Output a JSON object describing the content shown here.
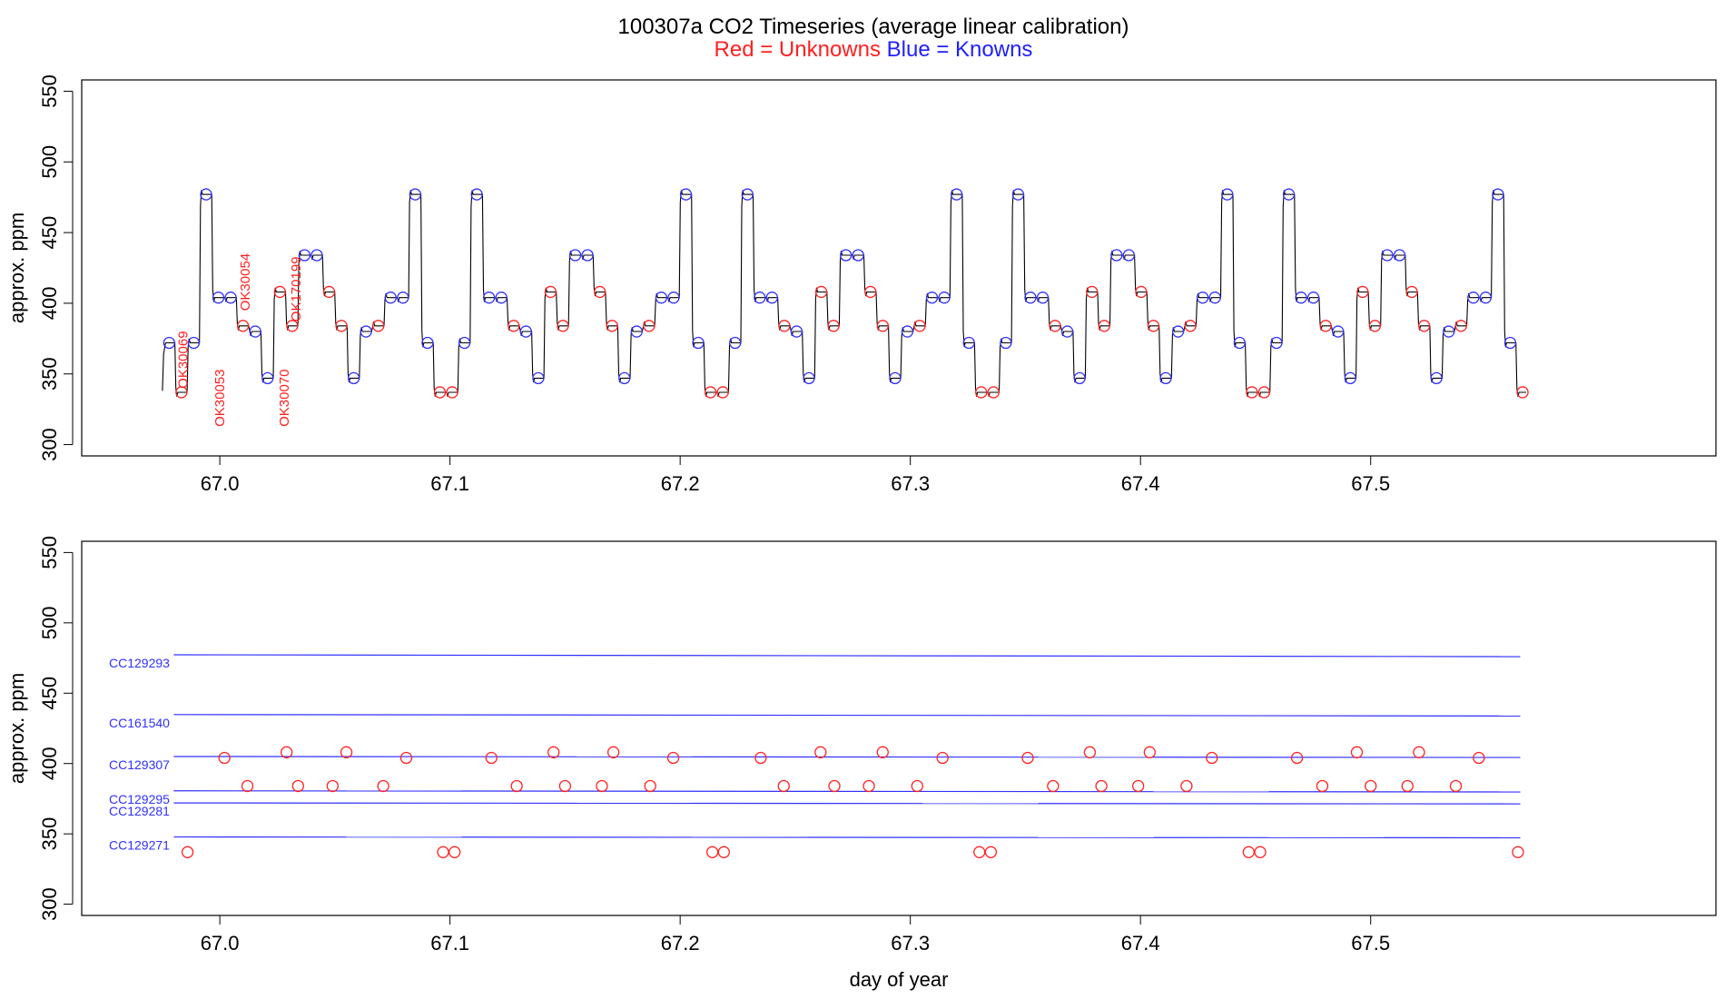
{
  "title": "100307a   CO2 Timeseries (average linear calibration)",
  "subtitle": {
    "red_text": "Red = Unknowns",
    "blue_text": "Blue = Knowns"
  },
  "colors": {
    "unknown": "#ff2020",
    "known": "#3030ff",
    "trace": "#000000",
    "axis": "#000000"
  },
  "chart_data": [
    {
      "type": "line",
      "title": "",
      "xlabel": "",
      "ylabel": "approx. ppm",
      "xlim": [
        66.94,
        67.65
      ],
      "ylim": [
        292,
        558
      ],
      "xticks": [
        67.0,
        67.1,
        67.2,
        67.3,
        67.4,
        67.5
      ],
      "xtick_labels": [
        "67.0",
        "67.1",
        "67.2",
        "67.3",
        "67.4",
        "67.5"
      ],
      "yticks": [
        300,
        350,
        400,
        450,
        500,
        550
      ],
      "ytick_labels": [
        "300",
        "350",
        "400",
        "450",
        "500",
        "550"
      ],
      "x_start": 66.978,
      "x_end": 67.566,
      "value_sequence": [
        372,
        337,
        372,
        477,
        404,
        404,
        384,
        380,
        347,
        408,
        384,
        434,
        434,
        408,
        384,
        347,
        380,
        384,
        404,
        404,
        477,
        372,
        337,
        337,
        372,
        477,
        404,
        404,
        384,
        380,
        347,
        408,
        384,
        434,
        434,
        408,
        384,
        347,
        380,
        384,
        404,
        404,
        477,
        372,
        337,
        337,
        372,
        477,
        404,
        404,
        384,
        380,
        347,
        408,
        384,
        434,
        434,
        408,
        384,
        347,
        380,
        384,
        404,
        404,
        477,
        372,
        337,
        337,
        372,
        477,
        404,
        404,
        384,
        380,
        347,
        408,
        384,
        434,
        434,
        408,
        384,
        347,
        380,
        384,
        404,
        404,
        477,
        372,
        337,
        337,
        372,
        477,
        404,
        404,
        384,
        380,
        347,
        408,
        384,
        434,
        434,
        408,
        384,
        347,
        380,
        384,
        404,
        404,
        477,
        372,
        337
      ],
      "known_values": [
        477,
        434,
        404,
        380,
        372,
        347
      ],
      "annotations": [
        {
          "text": "OK30069",
          "x": 66.986,
          "y": 360
        },
        {
          "text": "OK30053",
          "x": 67.002,
          "y": 333
        },
        {
          "text": "OK30054",
          "x": 67.013,
          "y": 415
        },
        {
          "text": "OK30070",
          "x": 67.03,
          "y": 333
        },
        {
          "text": "OK170199",
          "x": 67.035,
          "y": 410
        }
      ]
    },
    {
      "type": "scatter",
      "title": "",
      "xlabel": "day of year",
      "ylabel": "approx. ppm",
      "xlim": [
        66.94,
        67.65
      ],
      "ylim": [
        292,
        558
      ],
      "xticks": [
        67.0,
        67.1,
        67.2,
        67.3,
        67.4,
        67.5
      ],
      "xtick_labels": [
        "67.0",
        "67.1",
        "67.2",
        "67.3",
        "67.4",
        "67.5"
      ],
      "yticks": [
        300,
        350,
        400,
        450,
        500,
        550
      ],
      "ytick_labels": [
        "300",
        "350",
        "400",
        "450",
        "500",
        "550"
      ],
      "standards": [
        {
          "name": "CC129293",
          "y_start": 477.3,
          "y_end": 476.0
        },
        {
          "name": "CC161540",
          "y_start": 434.8,
          "y_end": 433.8
        },
        {
          "name": "CC129307",
          "y_start": 405.0,
          "y_end": 404.3
        },
        {
          "name": "CC129295",
          "y_start": 380.6,
          "y_end": 379.8
        },
        {
          "name": "CC129281",
          "y_start": 372.0,
          "y_end": 371.3
        },
        {
          "name": "CC129271",
          "y_start": 347.8,
          "y_end": 347.2
        }
      ],
      "standards_x": [
        66.98,
        67.565
      ],
      "unknowns": [
        {
          "x": 66.986,
          "y": 337
        },
        {
          "x": 67.002,
          "y": 404
        },
        {
          "x": 67.012,
          "y": 384
        },
        {
          "x": 67.029,
          "y": 408
        },
        {
          "x": 67.034,
          "y": 384
        },
        {
          "x": 67.049,
          "y": 384
        },
        {
          "x": 67.055,
          "y": 408
        },
        {
          "x": 67.071,
          "y": 384
        },
        {
          "x": 67.081,
          "y": 404
        },
        {
          "x": 67.097,
          "y": 337
        },
        {
          "x": 67.102,
          "y": 337
        },
        {
          "x": 67.118,
          "y": 404
        },
        {
          "x": 67.129,
          "y": 384
        },
        {
          "x": 67.145,
          "y": 408
        },
        {
          "x": 67.15,
          "y": 384
        },
        {
          "x": 67.166,
          "y": 384
        },
        {
          "x": 67.171,
          "y": 408
        },
        {
          "x": 67.187,
          "y": 384
        },
        {
          "x": 67.197,
          "y": 404
        },
        {
          "x": 67.214,
          "y": 337
        },
        {
          "x": 67.219,
          "y": 337
        },
        {
          "x": 67.235,
          "y": 404
        },
        {
          "x": 67.245,
          "y": 384
        },
        {
          "x": 67.261,
          "y": 408
        },
        {
          "x": 67.267,
          "y": 384
        },
        {
          "x": 67.282,
          "y": 384
        },
        {
          "x": 67.288,
          "y": 408
        },
        {
          "x": 67.303,
          "y": 384
        },
        {
          "x": 67.314,
          "y": 404
        },
        {
          "x": 67.33,
          "y": 337
        },
        {
          "x": 67.335,
          "y": 337
        },
        {
          "x": 67.351,
          "y": 404
        },
        {
          "x": 67.362,
          "y": 384
        },
        {
          "x": 67.378,
          "y": 408
        },
        {
          "x": 67.383,
          "y": 384
        },
        {
          "x": 67.399,
          "y": 384
        },
        {
          "x": 67.404,
          "y": 408
        },
        {
          "x": 67.42,
          "y": 384
        },
        {
          "x": 67.431,
          "y": 404
        },
        {
          "x": 67.447,
          "y": 337
        },
        {
          "x": 67.452,
          "y": 337
        },
        {
          "x": 67.468,
          "y": 404
        },
        {
          "x": 67.479,
          "y": 384
        },
        {
          "x": 67.494,
          "y": 408
        },
        {
          "x": 67.5,
          "y": 384
        },
        {
          "x": 67.516,
          "y": 384
        },
        {
          "x": 67.521,
          "y": 408
        },
        {
          "x": 67.537,
          "y": 384
        },
        {
          "x": 67.547,
          "y": 404
        },
        {
          "x": 67.564,
          "y": 337
        }
      ]
    }
  ]
}
